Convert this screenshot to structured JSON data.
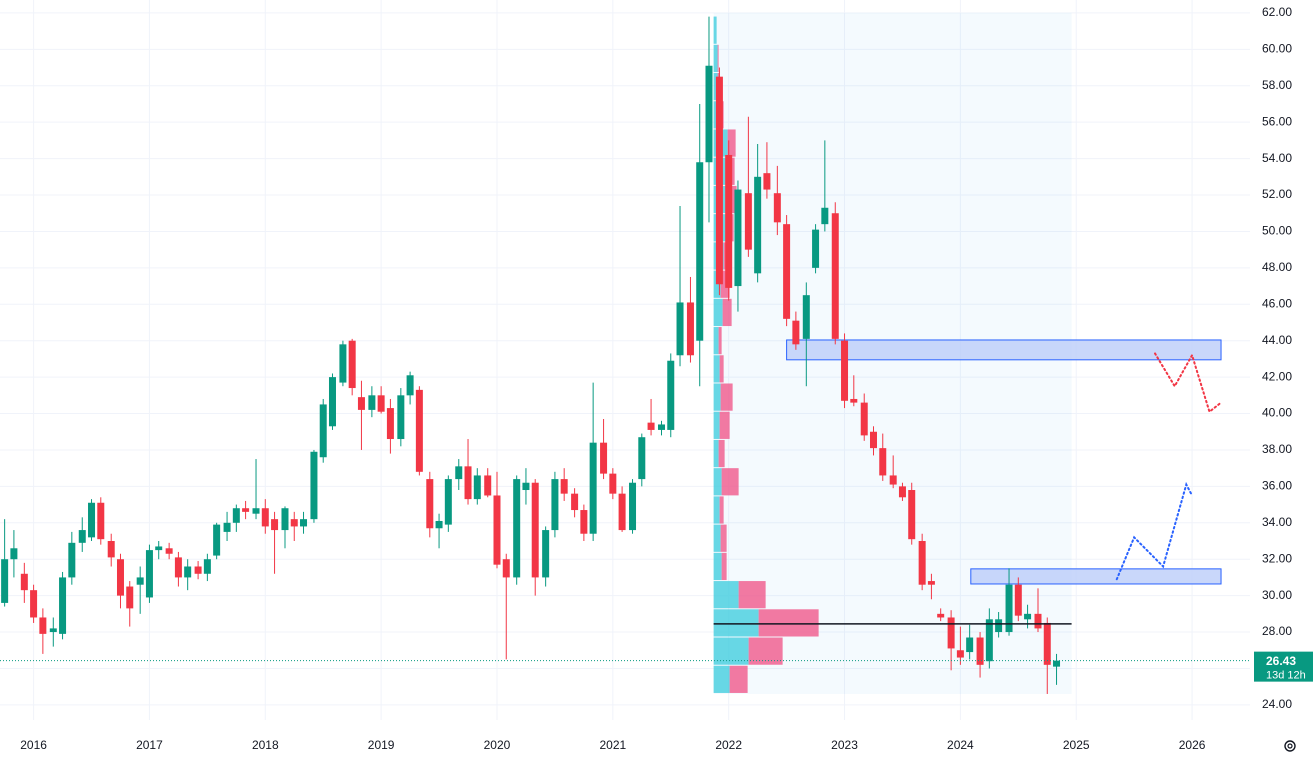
{
  "chart_data": {
    "type": "candlestick",
    "up_color": "#089981",
    "down_color": "#f23645",
    "xlim": [
      2015.71,
      2026.5
    ],
    "ylim": [
      23.17,
      62.71
    ],
    "xticks": [
      2016,
      2017,
      2018,
      2019,
      2020,
      2021,
      2022,
      2023,
      2024,
      2025,
      2026
    ],
    "yticks": [
      {
        "value": 24,
        "label": "24.00"
      },
      {
        "value": 26,
        "label": "26.00"
      },
      {
        "value": 28,
        "label": "28.00"
      },
      {
        "value": 30,
        "label": "30.00"
      },
      {
        "value": 32,
        "label": "32.00"
      },
      {
        "value": 34,
        "label": "34.00"
      },
      {
        "value": 36,
        "label": "36.00"
      },
      {
        "value": 38,
        "label": "38.00"
      },
      {
        "value": 40,
        "label": "40.00"
      },
      {
        "value": 42,
        "label": "42.00"
      },
      {
        "value": 44,
        "label": "44.00"
      },
      {
        "value": 46,
        "label": "46.00"
      },
      {
        "value": 48,
        "label": "48.00"
      },
      {
        "value": 50,
        "label": "50.00"
      },
      {
        "value": 52,
        "label": "52.00"
      },
      {
        "value": 54,
        "label": "54.00"
      },
      {
        "value": 56,
        "label": "56.00"
      },
      {
        "value": 58,
        "label": "58.00"
      },
      {
        "value": 60,
        "label": "60.00"
      },
      {
        "value": 62,
        "label": "62.00"
      }
    ],
    "grid": true,
    "candles": [
      {
        "x": 2015.75,
        "o": 29.6,
        "h": 34.2,
        "l": 29.4,
        "c": 32.0
      },
      {
        "x": 2015.83,
        "o": 32.0,
        "h": 33.6,
        "l": 31.0,
        "c": 32.6
      },
      {
        "x": 2015.92,
        "o": 31.2,
        "h": 31.8,
        "l": 29.6,
        "c": 30.3
      },
      {
        "x": 2016.0,
        "o": 30.3,
        "h": 30.6,
        "l": 28.5,
        "c": 28.8
      },
      {
        "x": 2016.08,
        "o": 28.8,
        "h": 29.3,
        "l": 26.8,
        "c": 27.9
      },
      {
        "x": 2016.17,
        "o": 28.0,
        "h": 28.8,
        "l": 27.2,
        "c": 28.2
      },
      {
        "x": 2016.25,
        "o": 27.9,
        "h": 31.3,
        "l": 27.6,
        "c": 31.0
      },
      {
        "x": 2016.33,
        "o": 31.0,
        "h": 33.5,
        "l": 30.6,
        "c": 32.9
      },
      {
        "x": 2016.42,
        "o": 32.9,
        "h": 34.3,
        "l": 32.4,
        "c": 33.6
      },
      {
        "x": 2016.5,
        "o": 33.2,
        "h": 35.3,
        "l": 33.0,
        "c": 35.1
      },
      {
        "x": 2016.58,
        "o": 35.1,
        "h": 35.4,
        "l": 32.8,
        "c": 33.1
      },
      {
        "x": 2016.67,
        "o": 33.0,
        "h": 33.4,
        "l": 31.6,
        "c": 32.1
      },
      {
        "x": 2016.75,
        "o": 32.0,
        "h": 32.3,
        "l": 29.3,
        "c": 30.0
      },
      {
        "x": 2016.83,
        "o": 30.5,
        "h": 30.8,
        "l": 28.3,
        "c": 29.3
      },
      {
        "x": 2016.92,
        "o": 30.6,
        "h": 31.6,
        "l": 29.0,
        "c": 31.0
      },
      {
        "x": 2017.0,
        "o": 29.9,
        "h": 32.8,
        "l": 29.6,
        "c": 32.5
      },
      {
        "x": 2017.08,
        "o": 32.5,
        "h": 33.0,
        "l": 32.0,
        "c": 32.7
      },
      {
        "x": 2017.17,
        "o": 32.6,
        "h": 32.9,
        "l": 32.0,
        "c": 32.3
      },
      {
        "x": 2017.25,
        "o": 32.1,
        "h": 32.4,
        "l": 30.5,
        "c": 31.0
      },
      {
        "x": 2017.33,
        "o": 31.0,
        "h": 32.0,
        "l": 30.3,
        "c": 31.6
      },
      {
        "x": 2017.42,
        "o": 31.6,
        "h": 31.9,
        "l": 30.9,
        "c": 31.2
      },
      {
        "x": 2017.5,
        "o": 31.2,
        "h": 32.3,
        "l": 30.8,
        "c": 32.0
      },
      {
        "x": 2017.58,
        "o": 32.2,
        "h": 34.0,
        "l": 32.0,
        "c": 33.9
      },
      {
        "x": 2017.67,
        "o": 33.5,
        "h": 34.6,
        "l": 33.0,
        "c": 34.0
      },
      {
        "x": 2017.75,
        "o": 34.0,
        "h": 35.0,
        "l": 33.5,
        "c": 34.8
      },
      {
        "x": 2017.83,
        "o": 34.8,
        "h": 35.2,
        "l": 34.2,
        "c": 34.6
      },
      {
        "x": 2017.92,
        "o": 34.5,
        "h": 37.5,
        "l": 34.2,
        "c": 34.8
      },
      {
        "x": 2018.0,
        "o": 34.8,
        "h": 35.3,
        "l": 33.4,
        "c": 33.8
      },
      {
        "x": 2018.08,
        "o": 34.2,
        "h": 34.6,
        "l": 31.2,
        "c": 33.6
      },
      {
        "x": 2018.17,
        "o": 33.6,
        "h": 34.9,
        "l": 32.6,
        "c": 34.8
      },
      {
        "x": 2018.25,
        "o": 34.2,
        "h": 34.6,
        "l": 33.0,
        "c": 33.8
      },
      {
        "x": 2018.33,
        "o": 33.8,
        "h": 34.6,
        "l": 33.4,
        "c": 34.2
      },
      {
        "x": 2018.42,
        "o": 34.2,
        "h": 38.0,
        "l": 34.0,
        "c": 37.9
      },
      {
        "x": 2018.5,
        "o": 37.6,
        "h": 40.8,
        "l": 37.3,
        "c": 40.5
      },
      {
        "x": 2018.58,
        "o": 39.3,
        "h": 42.2,
        "l": 39.1,
        "c": 42.0
      },
      {
        "x": 2018.67,
        "o": 41.7,
        "h": 44.0,
        "l": 41.5,
        "c": 43.8
      },
      {
        "x": 2018.75,
        "o": 44.0,
        "h": 44.1,
        "l": 41.0,
        "c": 41.4
      },
      {
        "x": 2018.83,
        "o": 40.9,
        "h": 41.8,
        "l": 38.0,
        "c": 40.2
      },
      {
        "x": 2018.92,
        "o": 40.2,
        "h": 41.5,
        "l": 39.8,
        "c": 41.0
      },
      {
        "x": 2019.0,
        "o": 41.0,
        "h": 41.5,
        "l": 40.0,
        "c": 40.1
      },
      {
        "x": 2019.08,
        "o": 40.3,
        "h": 40.8,
        "l": 37.8,
        "c": 38.6
      },
      {
        "x": 2019.17,
        "o": 38.6,
        "h": 41.4,
        "l": 38.2,
        "c": 41.0
      },
      {
        "x": 2019.25,
        "o": 41.0,
        "h": 42.3,
        "l": 40.5,
        "c": 42.1
      },
      {
        "x": 2019.33,
        "o": 41.3,
        "h": 41.5,
        "l": 36.6,
        "c": 36.8
      },
      {
        "x": 2019.42,
        "o": 36.4,
        "h": 36.8,
        "l": 33.2,
        "c": 33.7
      },
      {
        "x": 2019.5,
        "o": 33.7,
        "h": 34.5,
        "l": 32.6,
        "c": 34.1
      },
      {
        "x": 2019.58,
        "o": 33.9,
        "h": 36.6,
        "l": 33.5,
        "c": 36.4
      },
      {
        "x": 2019.67,
        "o": 36.4,
        "h": 37.5,
        "l": 35.8,
        "c": 37.1
      },
      {
        "x": 2019.75,
        "o": 37.1,
        "h": 38.6,
        "l": 35.0,
        "c": 35.3
      },
      {
        "x": 2019.83,
        "o": 35.3,
        "h": 37.0,
        "l": 35.0,
        "c": 36.6
      },
      {
        "x": 2019.92,
        "o": 36.6,
        "h": 37.0,
        "l": 35.4,
        "c": 35.5
      },
      {
        "x": 2020.0,
        "o": 35.5,
        "h": 36.8,
        "l": 31.5,
        "c": 31.7
      },
      {
        "x": 2020.08,
        "o": 32.0,
        "h": 32.3,
        "l": 26.5,
        "c": 31.0
      },
      {
        "x": 2020.17,
        "o": 31.0,
        "h": 36.6,
        "l": 30.6,
        "c": 36.4
      },
      {
        "x": 2020.25,
        "o": 35.8,
        "h": 37.0,
        "l": 35.0,
        "c": 36.2
      },
      {
        "x": 2020.33,
        "o": 36.2,
        "h": 36.4,
        "l": 30.0,
        "c": 31.0
      },
      {
        "x": 2020.42,
        "o": 31.0,
        "h": 33.8,
        "l": 30.5,
        "c": 33.6
      },
      {
        "x": 2020.5,
        "o": 33.6,
        "h": 36.8,
        "l": 33.2,
        "c": 36.4
      },
      {
        "x": 2020.58,
        "o": 36.4,
        "h": 37.0,
        "l": 35.2,
        "c": 35.6
      },
      {
        "x": 2020.67,
        "o": 35.6,
        "h": 35.9,
        "l": 34.3,
        "c": 34.7
      },
      {
        "x": 2020.75,
        "o": 34.7,
        "h": 35.0,
        "l": 33.0,
        "c": 33.4
      },
      {
        "x": 2020.83,
        "o": 33.4,
        "h": 41.7,
        "l": 33.0,
        "c": 38.4
      },
      {
        "x": 2020.92,
        "o": 38.4,
        "h": 39.7,
        "l": 36.4,
        "c": 36.7
      },
      {
        "x": 2021.0,
        "o": 36.7,
        "h": 37.0,
        "l": 35.3,
        "c": 35.6
      },
      {
        "x": 2021.08,
        "o": 35.6,
        "h": 36.0,
        "l": 33.5,
        "c": 33.6
      },
      {
        "x": 2021.17,
        "o": 33.6,
        "h": 36.4,
        "l": 33.4,
        "c": 36.2
      },
      {
        "x": 2021.25,
        "o": 36.4,
        "h": 38.9,
        "l": 36.0,
        "c": 38.7
      },
      {
        "x": 2021.33,
        "o": 39.5,
        "h": 40.8,
        "l": 38.8,
        "c": 39.1
      },
      {
        "x": 2021.42,
        "o": 39.1,
        "h": 39.6,
        "l": 38.8,
        "c": 39.4
      },
      {
        "x": 2021.5,
        "o": 39.1,
        "h": 43.3,
        "l": 38.7,
        "c": 42.9
      },
      {
        "x": 2021.58,
        "o": 43.2,
        "h": 51.4,
        "l": 42.6,
        "c": 46.1
      },
      {
        "x": 2021.67,
        "o": 46.1,
        "h": 47.5,
        "l": 42.8,
        "c": 43.2
      },
      {
        "x": 2021.75,
        "o": 44.0,
        "h": 57.0,
        "l": 41.5,
        "c": 53.8
      },
      {
        "x": 2021.83,
        "o": 53.8,
        "h": 61.8,
        "l": 50.5,
        "c": 59.1
      },
      {
        "x": 2021.92,
        "o": 58.5,
        "h": 59.0,
        "l": 46.5,
        "c": 47.1
      },
      {
        "x": 2022.0,
        "o": 54.2,
        "h": 55.0,
        "l": 46.2,
        "c": 46.9
      },
      {
        "x": 2022.08,
        "o": 47.0,
        "h": 52.8,
        "l": 45.6,
        "c": 52.3
      },
      {
        "x": 2022.17,
        "o": 52.1,
        "h": 56.3,
        "l": 48.6,
        "c": 49.0
      },
      {
        "x": 2022.25,
        "o": 47.7,
        "h": 54.8,
        "l": 47.2,
        "c": 53.0
      },
      {
        "x": 2022.33,
        "o": 53.2,
        "h": 54.9,
        "l": 51.8,
        "c": 52.3
      },
      {
        "x": 2022.42,
        "o": 52.1,
        "h": 53.6,
        "l": 49.8,
        "c": 50.5
      },
      {
        "x": 2022.5,
        "o": 50.4,
        "h": 50.9,
        "l": 44.8,
        "c": 45.2
      },
      {
        "x": 2022.58,
        "o": 45.1,
        "h": 45.6,
        "l": 43.5,
        "c": 43.8
      },
      {
        "x": 2022.67,
        "o": 44.1,
        "h": 47.2,
        "l": 41.5,
        "c": 46.5
      },
      {
        "x": 2022.75,
        "o": 48.0,
        "h": 50.4,
        "l": 47.7,
        "c": 50.1
      },
      {
        "x": 2022.83,
        "o": 50.4,
        "h": 55.0,
        "l": 50.0,
        "c": 51.3
      },
      {
        "x": 2022.92,
        "o": 51.0,
        "h": 51.6,
        "l": 43.8,
        "c": 44.1
      },
      {
        "x": 2023.0,
        "o": 44.0,
        "h": 44.4,
        "l": 40.3,
        "c": 40.7
      },
      {
        "x": 2023.08,
        "o": 40.8,
        "h": 42.1,
        "l": 40.4,
        "c": 40.6
      },
      {
        "x": 2023.17,
        "o": 40.6,
        "h": 41.1,
        "l": 38.5,
        "c": 38.8
      },
      {
        "x": 2023.25,
        "o": 39.0,
        "h": 39.3,
        "l": 37.7,
        "c": 38.1
      },
      {
        "x": 2023.33,
        "o": 38.1,
        "h": 38.9,
        "l": 36.3,
        "c": 36.6
      },
      {
        "x": 2023.42,
        "o": 36.6,
        "h": 37.7,
        "l": 35.9,
        "c": 36.1
      },
      {
        "x": 2023.5,
        "o": 36.0,
        "h": 36.2,
        "l": 35.2,
        "c": 35.4
      },
      {
        "x": 2023.58,
        "o": 35.8,
        "h": 36.2,
        "l": 32.8,
        "c": 33.1
      },
      {
        "x": 2023.67,
        "o": 33.0,
        "h": 33.4,
        "l": 30.3,
        "c": 30.6
      },
      {
        "x": 2023.75,
        "o": 30.8,
        "h": 31.2,
        "l": 29.8,
        "c": 30.6
      },
      {
        "x": 2023.83,
        "o": 29.0,
        "h": 29.3,
        "l": 28.6,
        "c": 28.8
      },
      {
        "x": 2023.92,
        "o": 28.8,
        "h": 29.2,
        "l": 25.9,
        "c": 27.1
      },
      {
        "x": 2024.0,
        "o": 27.0,
        "h": 28.3,
        "l": 26.2,
        "c": 26.6
      },
      {
        "x": 2024.08,
        "o": 26.9,
        "h": 28.4,
        "l": 26.5,
        "c": 27.7
      },
      {
        "x": 2024.17,
        "o": 27.7,
        "h": 28.0,
        "l": 25.5,
        "c": 26.2
      },
      {
        "x": 2024.25,
        "o": 26.4,
        "h": 29.3,
        "l": 26.0,
        "c": 28.7
      },
      {
        "x": 2024.33,
        "o": 28.0,
        "h": 29.1,
        "l": 27.7,
        "c": 28.7
      },
      {
        "x": 2024.42,
        "o": 28.0,
        "h": 31.5,
        "l": 27.8,
        "c": 30.6
      },
      {
        "x": 2024.5,
        "o": 30.6,
        "h": 31.0,
        "l": 28.6,
        "c": 28.9
      },
      {
        "x": 2024.58,
        "o": 28.7,
        "h": 29.5,
        "l": 28.2,
        "c": 29.0
      },
      {
        "x": 2024.67,
        "o": 29.0,
        "h": 30.4,
        "l": 28.0,
        "c": 28.2
      },
      {
        "x": 2024.75,
        "o": 28.5,
        "h": 28.8,
        "l": 24.6,
        "c": 26.2
      },
      {
        "x": 2024.83,
        "o": 26.1,
        "h": 26.8,
        "l": 25.1,
        "c": 26.43
      }
    ],
    "countdown": "13d 12h",
    "profile": {
      "x": [
        2021.87,
        2024.96
      ],
      "ylim": [
        24.6,
        62
      ],
      "buy_color": "#4dd0e1",
      "sell_color": "#f06292",
      "bins": [
        24.6,
        26.15,
        27.7,
        29.25,
        30.8,
        32.35,
        33.9,
        35.45,
        37.0,
        38.55,
        40.1,
        41.65,
        43.2,
        44.75,
        46.3,
        47.85,
        49.4,
        50.95,
        52.5,
        54.05,
        55.6,
        57.15,
        58.7,
        60.25,
        61.8
      ],
      "buy": [
        16,
        35,
        45,
        25,
        8,
        7,
        6,
        8,
        5,
        6,
        7,
        6,
        5,
        9,
        7,
        10,
        12,
        14,
        12,
        14,
        6,
        4,
        4,
        3
      ],
      "sell": [
        18,
        34,
        60,
        27,
        5,
        6,
        4,
        17,
        6,
        10,
        12,
        4,
        3,
        9,
        9,
        8,
        8,
        9,
        9,
        8,
        4,
        2,
        1,
        0
      ],
      "poc": 28.45
    },
    "zones": [
      {
        "x": [
          2022.5,
          2026.25
        ],
        "y": [
          42.95,
          44.04
        ]
      },
      {
        "x": [
          2024.09,
          2026.25
        ],
        "y": [
          30.64,
          31.47
        ]
      }
    ],
    "paths": [
      {
        "color": "#f23645",
        "x": [
          2025.68,
          2025.85,
          2026.0,
          2026.15,
          2026.25
        ],
        "y": [
          43.3,
          41.5,
          43.2,
          40.1,
          40.6
        ]
      },
      {
        "color": "#2962ff",
        "x": [
          2025.35,
          2025.5,
          2025.75,
          2025.95,
          2026.0
        ],
        "y": [
          30.9,
          33.2,
          31.6,
          36.1,
          35.5
        ]
      }
    ]
  }
}
